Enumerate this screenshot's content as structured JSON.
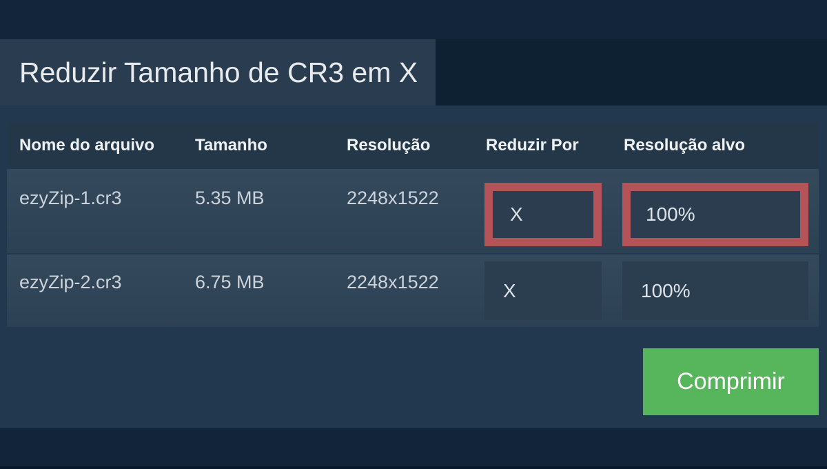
{
  "app": {
    "title": "Reduzir Tamanho de CR3 em X"
  },
  "table": {
    "headers": [
      "Nome do arquivo",
      "Tamanho",
      "Resolução",
      "Reduzir Por",
      "Resolução alvo"
    ],
    "rows": [
      {
        "filename": "ezyZip-1.cr3",
        "size": "5.35 MB",
        "resolution": "2248x1522",
        "reduce_by": "X",
        "target_resolution": "100%",
        "highlighted": true
      },
      {
        "filename": "ezyZip-2.cr3",
        "size": "6.75 MB",
        "resolution": "2248x1522",
        "reduce_by": "X",
        "target_resolution": "100%",
        "highlighted": false
      }
    ]
  },
  "actions": {
    "compress_label": "Comprimir"
  },
  "colors": {
    "highlight_border": "#b45459",
    "compress_button_bg": "#57b55b",
    "row_bg": "#31455a",
    "header_bg": "#243748",
    "page_bg": "#22384e",
    "dark_strip_bg": "#13253a"
  }
}
